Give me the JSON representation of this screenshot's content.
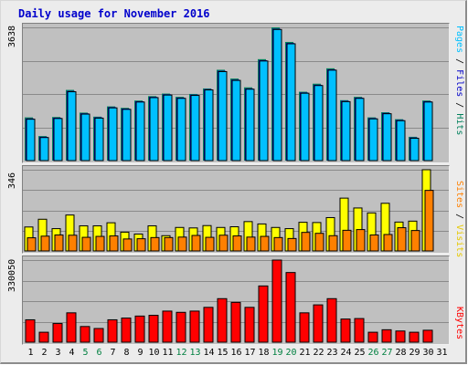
{
  "title": "Daily usage for November 2016",
  "colors": {
    "hits": "#00805c",
    "files": "#0000c8",
    "pages": "#00c0ff",
    "visits": "#ffff00",
    "sites": "#ff8000",
    "kbytes": "#ff0000",
    "weekend": "#008040",
    "weekday": "#000000"
  },
  "right_labels": {
    "top": [
      "Pages",
      " / ",
      "Files",
      " / ",
      "Hits"
    ],
    "middle": [
      "Sites",
      " / ",
      "Visits"
    ],
    "bottom": "KBytes"
  },
  "chart_data": [
    {
      "type": "bar",
      "panel": "hits-files-pages",
      "y_max_label": "3638",
      "ylim": [
        0,
        3638
      ],
      "categories": [
        "1",
        "2",
        "3",
        "4",
        "5",
        "6",
        "7",
        "8",
        "9",
        "10",
        "11",
        "12",
        "13",
        "14",
        "15",
        "16",
        "17",
        "18",
        "19",
        "20",
        "21",
        "22",
        "23",
        "24",
        "25",
        "26",
        "27",
        "28",
        "29",
        "30",
        "31"
      ],
      "series": [
        {
          "name": "Hits",
          "values": [
            1180,
            670,
            1190,
            1930,
            1310,
            1200,
            1480,
            1440,
            1640,
            1760,
            1830,
            1740,
            1820,
            1970,
            2480,
            2240,
            2000,
            2770,
            3638,
            3240,
            1880,
            2100,
            2520,
            1650,
            1740,
            1180,
            1320,
            1130,
            650,
            1640,
            0
          ]
        },
        {
          "name": "Files",
          "values": [
            1150,
            650,
            1170,
            1900,
            1290,
            1180,
            1460,
            1420,
            1620,
            1740,
            1810,
            1720,
            1800,
            1950,
            2450,
            2210,
            1970,
            2740,
            3600,
            3210,
            1860,
            2070,
            2490,
            1630,
            1720,
            1160,
            1300,
            1110,
            630,
            1620,
            0
          ]
        },
        {
          "name": "Pages",
          "values": [
            1130,
            630,
            1150,
            1880,
            1270,
            1160,
            1440,
            1400,
            1600,
            1720,
            1790,
            1700,
            1780,
            1930,
            2430,
            2190,
            1950,
            2720,
            3580,
            3190,
            1840,
            2050,
            2470,
            1610,
            1700,
            1140,
            1280,
            1090,
            610,
            1600,
            0
          ]
        }
      ],
      "weekend_days": [
        "5",
        "6",
        "12",
        "13",
        "19",
        "20",
        "26",
        "27"
      ]
    },
    {
      "type": "bar",
      "panel": "visits-sites",
      "y_max_label": "346",
      "ylim": [
        0,
        346
      ],
      "series": [
        {
          "name": "Visits",
          "values": [
            102,
            135,
            95,
            153,
            107,
            107,
            120,
            80,
            72,
            107,
            65,
            100,
            98,
            108,
            100,
            103,
            125,
            115,
            100,
            95,
            122,
            121,
            142,
            225,
            183,
            162,
            203,
            123,
            127,
            346,
            0
          ]
        },
        {
          "name": "Sites",
          "values": [
            56,
            63,
            68,
            67,
            58,
            62,
            64,
            51,
            52,
            57,
            57,
            59,
            66,
            58,
            67,
            64,
            59,
            62,
            57,
            53,
            79,
            75,
            65,
            88,
            91,
            68,
            70,
            99,
            87,
            258,
            0
          ]
        }
      ]
    },
    {
      "type": "bar",
      "panel": "kbytes",
      "y_max_label": "330050",
      "ylim": [
        0,
        330050
      ],
      "series": [
        {
          "name": "KBytes",
          "values": [
            90000,
            40000,
            75000,
            118000,
            63000,
            55000,
            90000,
            97000,
            105000,
            108000,
            125000,
            120000,
            125000,
            140000,
            175000,
            160000,
            140000,
            226000,
            330050,
            280000,
            118000,
            150000,
            175000,
            93000,
            95000,
            40000,
            50000,
            45000,
            40000,
            48000,
            0
          ]
        }
      ]
    }
  ]
}
